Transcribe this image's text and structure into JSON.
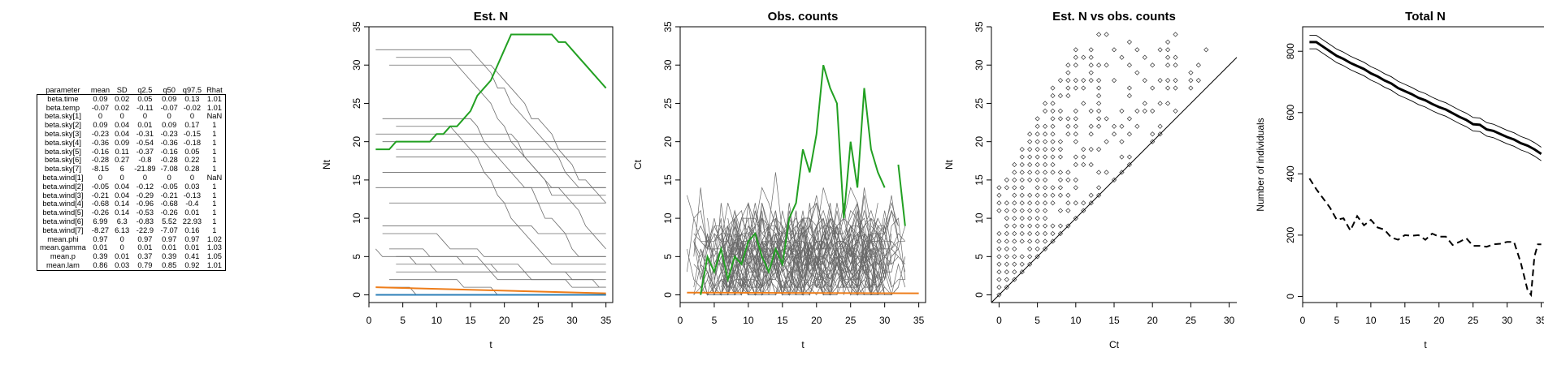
{
  "table": {
    "columns": [
      "parameter",
      "mean",
      "SD",
      "q2.5",
      "q50",
      "q97.5",
      "Rhat"
    ],
    "rows": [
      [
        "beta.time",
        "0.09",
        "0.02",
        "0.05",
        "0.09",
        "0.13",
        "1.01"
      ],
      [
        "beta.temp",
        "-0.07",
        "0.02",
        "-0.11",
        "-0.07",
        "-0.02",
        "1.01"
      ],
      [
        "beta.sky[1]",
        "0",
        "0",
        "0",
        "0",
        "0",
        "NaN"
      ],
      [
        "beta.sky[2]",
        "0.09",
        "0.04",
        "0.01",
        "0.09",
        "0.17",
        "1"
      ],
      [
        "beta.sky[3]",
        "-0.23",
        "0.04",
        "-0.31",
        "-0.23",
        "-0.15",
        "1"
      ],
      [
        "beta.sky[4]",
        "-0.36",
        "0.09",
        "-0.54",
        "-0.36",
        "-0.18",
        "1"
      ],
      [
        "beta.sky[5]",
        "-0.16",
        "0.11",
        "-0.37",
        "-0.16",
        "0.05",
        "1"
      ],
      [
        "beta.sky[6]",
        "-0.28",
        "0.27",
        "-0.8",
        "-0.28",
        "0.22",
        "1"
      ],
      [
        "beta.sky[7]",
        "-8.15",
        "6",
        "-21.89",
        "-7.08",
        "0.28",
        "1"
      ],
      [
        "beta.wind[1]",
        "0",
        "0",
        "0",
        "0",
        "0",
        "NaN"
      ],
      [
        "beta.wind[2]",
        "-0.05",
        "0.04",
        "-0.12",
        "-0.05",
        "0.03",
        "1"
      ],
      [
        "beta.wind[3]",
        "-0.21",
        "0.04",
        "-0.29",
        "-0.21",
        "-0.13",
        "1"
      ],
      [
        "beta.wind[4]",
        "-0.68",
        "0.14",
        "-0.96",
        "-0.68",
        "-0.4",
        "1"
      ],
      [
        "beta.wind[5]",
        "-0.26",
        "0.14",
        "-0.53",
        "-0.26",
        "0.01",
        "1"
      ],
      [
        "beta.wind[6]",
        "6.99",
        "6.3",
        "-0.83",
        "5.52",
        "22.93",
        "1"
      ],
      [
        "beta.wind[7]",
        "-8.27",
        "6.13",
        "-22.9",
        "-7.07",
        "0.16",
        "1"
      ],
      [
        "mean.phi",
        "0.97",
        "0",
        "0.97",
        "0.97",
        "0.97",
        "1.02"
      ],
      [
        "mean.gamma",
        "0.01",
        "0",
        "0.01",
        "0.01",
        "0.01",
        "1.03"
      ],
      [
        "mean.p",
        "0.39",
        "0.01",
        "0.37",
        "0.39",
        "0.41",
        "1.05"
      ],
      [
        "mean.lam",
        "0.86",
        "0.03",
        "0.79",
        "0.85",
        "0.92",
        "1.01"
      ]
    ]
  },
  "colors": {
    "green": "#22a022",
    "orange": "#ee7d1a",
    "blue": "#2c7fb8",
    "gray": "#5a5a5a",
    "black": "#000000"
  },
  "chart_data": [
    {
      "type": "line",
      "title": "Est. N",
      "xlabel": "t",
      "ylabel": "Nt",
      "xlim": [
        0,
        36
      ],
      "ylim": [
        -1,
        35
      ],
      "xticks": [
        0,
        5,
        10,
        15,
        20,
        25,
        30,
        35
      ],
      "yticks": [
        0,
        5,
        10,
        15,
        20,
        25,
        30,
        35
      ],
      "gray_levels": [
        32,
        31,
        30,
        23,
        22,
        21,
        20,
        19,
        18,
        16,
        14,
        12,
        9,
        8,
        7,
        6,
        5,
        4,
        3,
        2,
        1
      ],
      "series": [
        {
          "x": [
            1,
            2,
            3,
            4,
            5,
            6,
            7,
            8,
            9,
            10,
            11,
            12,
            13,
            14,
            15,
            16,
            17,
            18,
            19,
            20,
            21,
            22,
            23,
            24,
            25,
            26,
            27,
            28,
            29,
            30,
            31,
            32,
            33,
            34,
            35
          ],
          "y": [
            19,
            19,
            19,
            20,
            20,
            20,
            20,
            20,
            20,
            21,
            21,
            22,
            22,
            23,
            24,
            26,
            27,
            28,
            30,
            32,
            34,
            34,
            34,
            34,
            34,
            34,
            34,
            33,
            33,
            32,
            31,
            30,
            29,
            28,
            27
          ]
        },
        {
          "x": [
            1,
            35
          ],
          "y": [
            1,
            0.2
          ]
        },
        {
          "x": [
            1,
            35
          ],
          "y": [
            0,
            0
          ]
        }
      ]
    },
    {
      "type": "line",
      "title": "Obs. counts",
      "xlabel": "t",
      "ylabel": "Ct",
      "xlim": [
        0,
        36
      ],
      "ylim": [
        -1,
        35
      ],
      "xticks": [
        0,
        5,
        10,
        15,
        20,
        25,
        30,
        35
      ],
      "yticks": [
        0,
        5,
        10,
        15,
        20,
        25,
        30,
        35
      ],
      "series": [
        {
          "x": [
            3,
            4,
            5,
            6,
            7,
            8,
            9,
            10,
            11,
            12,
            13,
            14,
            15,
            16,
            17,
            18,
            19,
            20,
            21,
            22,
            23,
            24,
            25,
            26,
            27,
            28,
            29,
            30,
            31,
            32,
            33
          ],
          "y": [
            0,
            5,
            3,
            6,
            2,
            5,
            4,
            7,
            8,
            5,
            3,
            6,
            4,
            10,
            12,
            19,
            16,
            21,
            30,
            27,
            25,
            10,
            20,
            14,
            27,
            19,
            16,
            14,
            null,
            17,
            9
          ]
        },
        {
          "x": [
            1,
            35
          ],
          "y": [
            0.3,
            0.2
          ]
        }
      ]
    },
    {
      "type": "scatter",
      "title": "Est. N vs obs. counts",
      "xlabel": "Ct",
      "ylabel": "Nt",
      "xlim": [
        -1,
        31
      ],
      "ylim": [
        -1,
        35
      ],
      "xticks": [
        0,
        5,
        10,
        15,
        20,
        25,
        30
      ],
      "yticks": [
        0,
        5,
        10,
        15,
        20,
        25,
        30,
        35
      ],
      "reference_line": "y = x"
    },
    {
      "type": "line",
      "title": "Total N",
      "xlabel": "t",
      "ylabel": "Number of individuals",
      "xlim": [
        0,
        36
      ],
      "ylim": [
        -20,
        880
      ],
      "xticks": [
        0,
        5,
        10,
        15,
        20,
        25,
        30,
        35
      ],
      "yticks": [
        0,
        200,
        400,
        600,
        800
      ],
      "series": [
        {
          "x": [
            1,
            2,
            3,
            4,
            5,
            6,
            7,
            8,
            9,
            10,
            11,
            12,
            13,
            14,
            15,
            16,
            17,
            18,
            19,
            20,
            21,
            22,
            23,
            24,
            25,
            26,
            27,
            28,
            29,
            30,
            31,
            32,
            33,
            34,
            35
          ],
          "y": [
            830,
            830,
            815,
            800,
            785,
            775,
            762,
            752,
            742,
            728,
            718,
            705,
            695,
            680,
            670,
            660,
            648,
            640,
            628,
            618,
            610,
            598,
            586,
            576,
            562,
            560,
            545,
            540,
            530,
            520,
            512,
            500,
            492,
            480,
            465
          ]
        },
        {
          "x": [
            1,
            2,
            3,
            4,
            5,
            6,
            7,
            8,
            9,
            10,
            11,
            12,
            13,
            14,
            15,
            16,
            17,
            18,
            19,
            20,
            21,
            22,
            23,
            24,
            25,
            26,
            27,
            28,
            29,
            30,
            31,
            32,
            33,
            33.5,
            34,
            34.5,
            35
          ],
          "y": [
            385,
            350,
            320,
            290,
            250,
            255,
            215,
            262,
            232,
            250,
            225,
            218,
            192,
            185,
            200,
            198,
            200,
            185,
            205,
            195,
            195,
            168,
            178,
            190,
            165,
            165,
            162,
            170,
            172,
            178,
            178,
            110,
            20,
            5,
            130,
            170,
            170
          ]
        }
      ]
    }
  ]
}
